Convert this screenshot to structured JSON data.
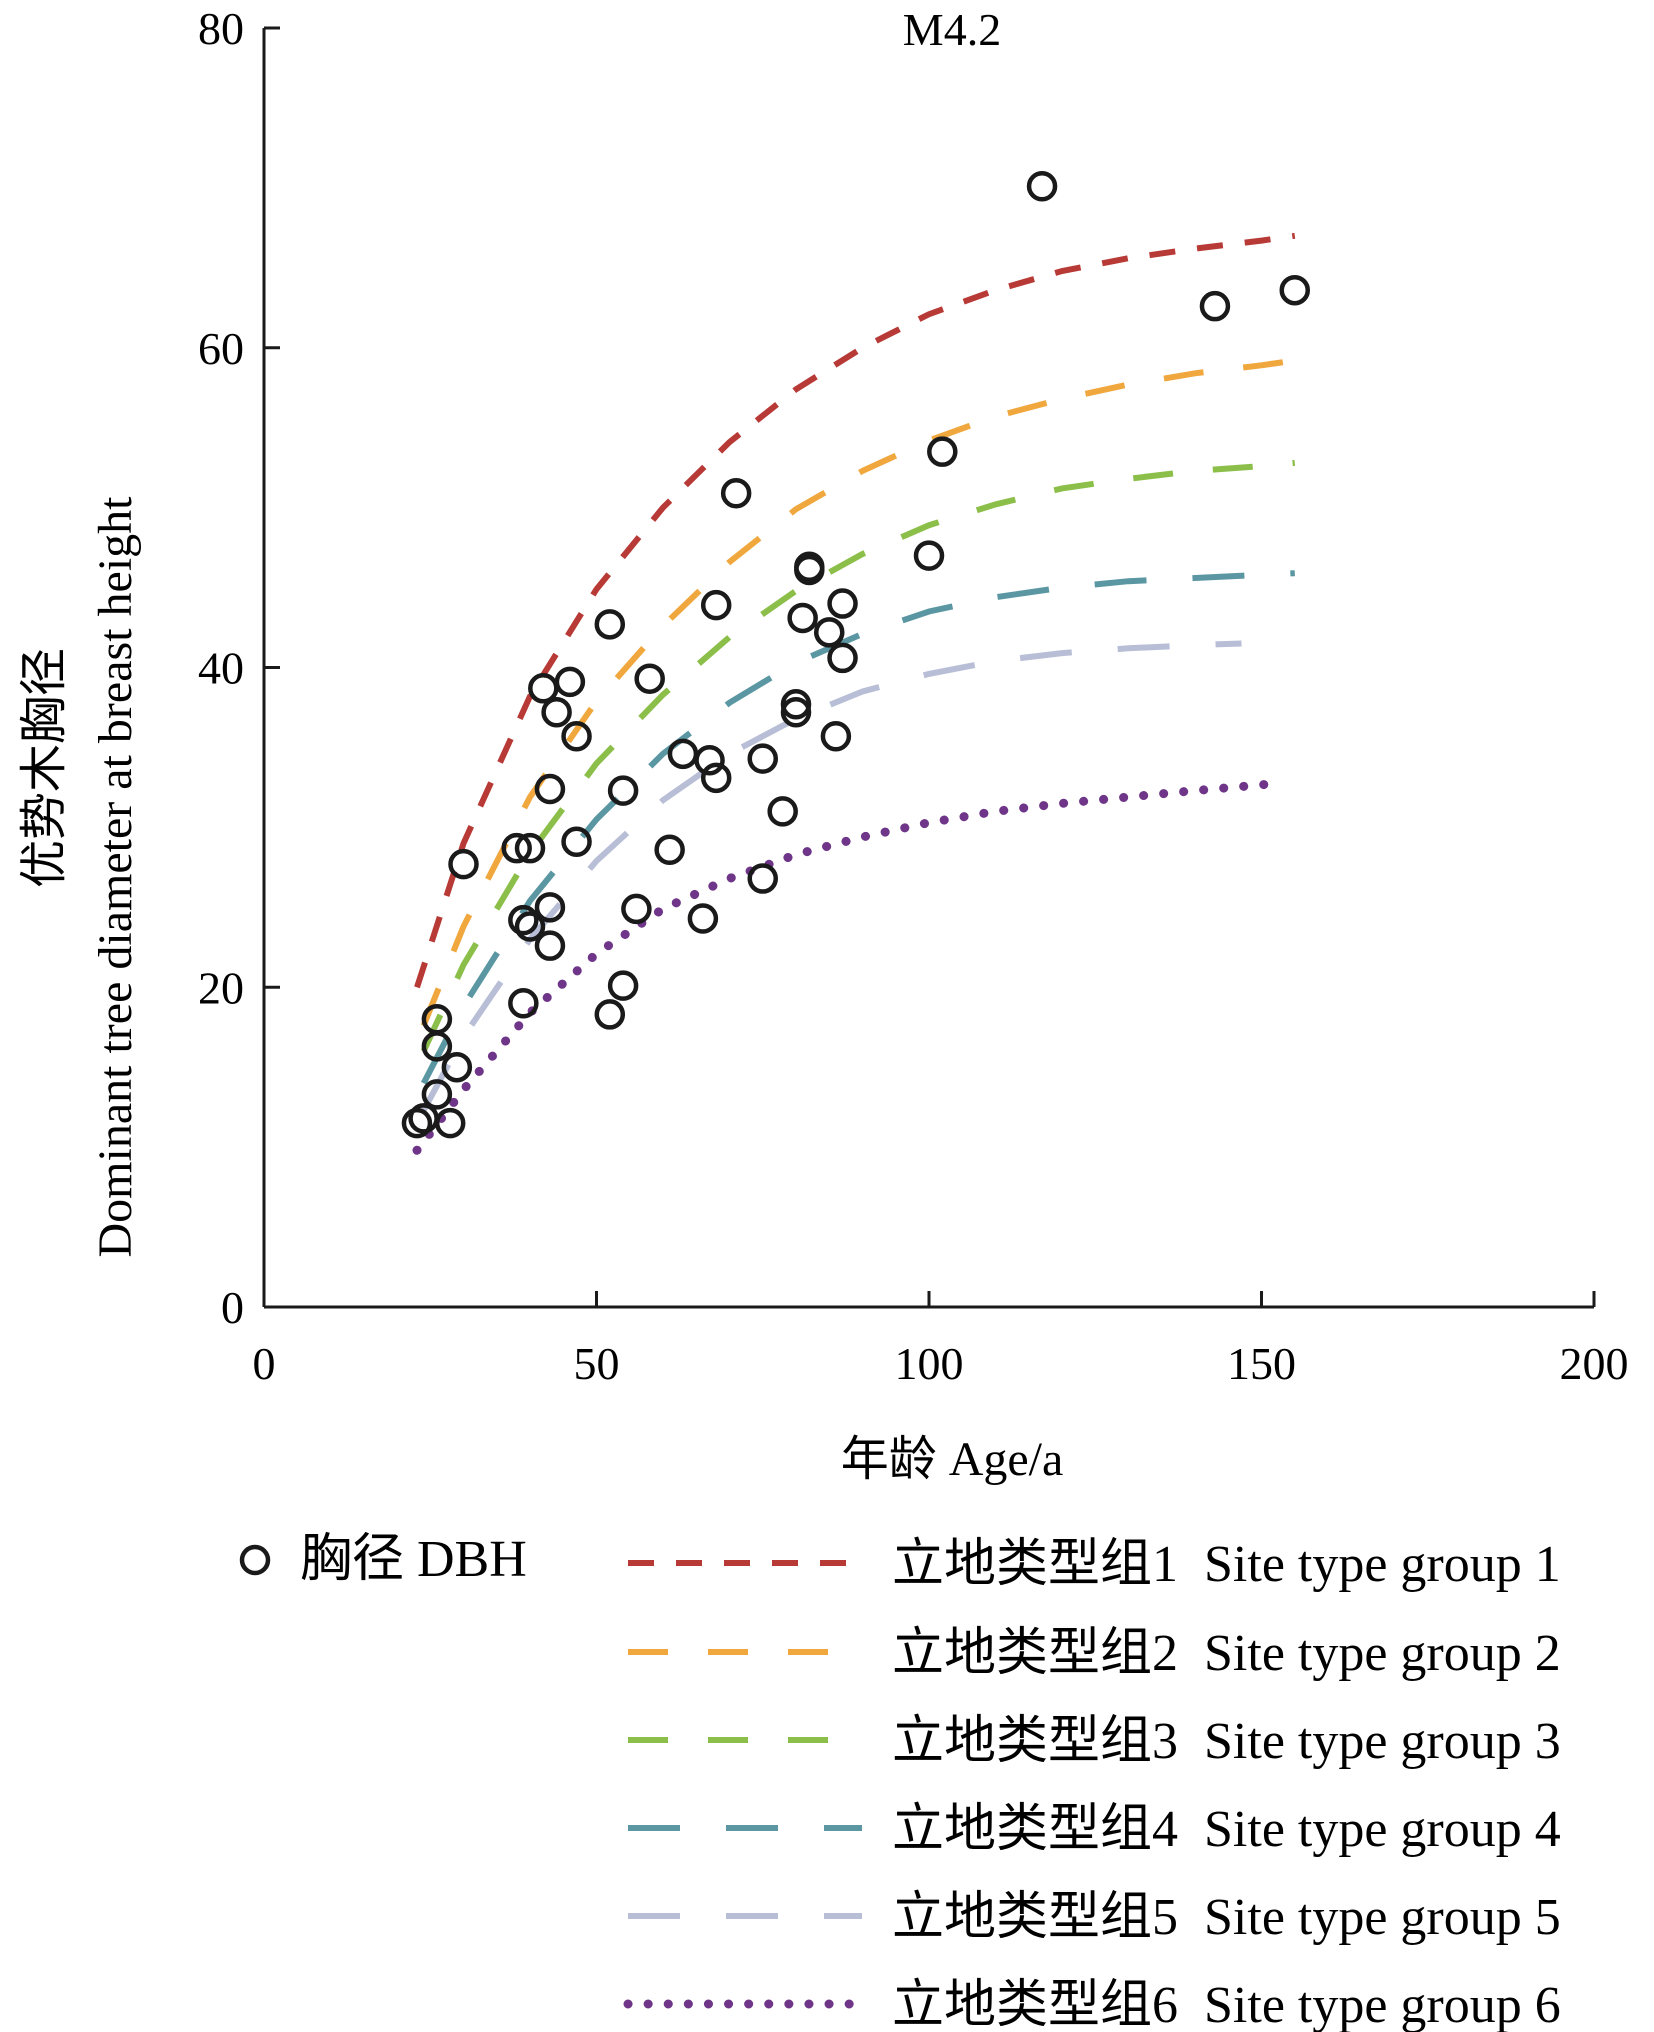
{
  "chart_data": {
    "type": "scatter",
    "title": "M4.2",
    "xlabel": "年龄 Age/a",
    "ylabel": {
      "zh": "优势木胸径",
      "en": "Dominant tree diameter at breast height"
    },
    "xlim": [
      0,
      200
    ],
    "ylim": [
      0,
      80
    ],
    "xticks": [
      0,
      50,
      100,
      150,
      200
    ],
    "yticks": [
      0,
      20,
      40,
      60,
      80
    ],
    "grid": false,
    "legend_position": "bottom",
    "scatter": {
      "name": "胸径 DBH",
      "color": "#1a1a1a",
      "x": [
        23,
        24,
        26,
        26,
        26,
        28,
        29,
        30,
        38,
        39,
        39,
        40,
        40,
        42,
        43,
        43,
        43,
        44,
        46,
        47,
        47,
        52,
        52,
        54,
        54,
        56,
        58,
        61,
        63,
        66,
        67,
        68,
        68,
        71,
        75,
        75,
        78,
        80,
        80,
        81,
        82,
        82,
        85,
        86,
        87,
        87,
        100,
        102,
        117,
        143,
        155
      ],
      "y": [
        11.5,
        11.8,
        16.3,
        18.0,
        13.3,
        11.5,
        15.0,
        27.7,
        28.7,
        24.2,
        19.0,
        28.7,
        23.8,
        38.7,
        32.4,
        25.0,
        22.6,
        37.2,
        39.1,
        35.7,
        29.1,
        42.7,
        18.3,
        32.3,
        20.1,
        24.9,
        39.3,
        28.6,
        34.6,
        24.3,
        34.2,
        33.1,
        43.9,
        50.9,
        34.3,
        26.8,
        31.0,
        37.7,
        37.2,
        43.1,
        46.3,
        46.1,
        42.2,
        35.7,
        44.0,
        40.6,
        47.0,
        53.5,
        70.1,
        62.6,
        63.6
      ]
    },
    "series": [
      {
        "name": "立地类型组1  Site type group 1",
        "color": "#b83a36",
        "dash": "dash",
        "x": [
          23,
          30,
          40,
          50,
          60,
          70,
          80,
          90,
          100,
          110,
          120,
          130,
          140,
          150,
          155
        ],
        "y": [
          20.0,
          29.0,
          38.2,
          44.9,
          50.0,
          54.1,
          57.4,
          60.0,
          62.1,
          63.6,
          64.8,
          65.6,
          66.2,
          66.7,
          67.0
        ]
      },
      {
        "name": "立地类型组2  Site type group 2",
        "color": "#f0a83e",
        "dash": "long-dash",
        "x": [
          24,
          30,
          40,
          50,
          60,
          70,
          80,
          90,
          100,
          110,
          120,
          130,
          140,
          150,
          155
        ],
        "y": [
          17.6,
          23.8,
          31.9,
          37.9,
          42.6,
          46.6,
          49.9,
          52.3,
          54.2,
          55.7,
          56.8,
          57.7,
          58.4,
          58.9,
          59.2
        ]
      },
      {
        "name": "立地类型组3  Site type group 3",
        "color": "#8bbf4a",
        "dash": "long-dash",
        "x": [
          24,
          30,
          40,
          50,
          60,
          70,
          80,
          90,
          100,
          110,
          120,
          130,
          140,
          150,
          155
        ],
        "y": [
          16.0,
          21.4,
          28.4,
          34.0,
          38.3,
          41.9,
          44.8,
          47.1,
          48.9,
          50.2,
          51.2,
          51.8,
          52.3,
          52.6,
          52.8
        ]
      },
      {
        "name": "立地类型组4  Site type group 4",
        "color": "#5b97a3",
        "dash": "longer-dash",
        "x": [
          24,
          30,
          40,
          50,
          60,
          70,
          80,
          90,
          100,
          110,
          120,
          130,
          140,
          150,
          155
        ],
        "y": [
          14.0,
          18.8,
          25.4,
          30.5,
          34.6,
          37.8,
          40.3,
          42.1,
          43.5,
          44.4,
          45.0,
          45.4,
          45.6,
          45.8,
          45.9
        ]
      },
      {
        "name": "立地类型组5  Site type group 5",
        "color": "#b7bed6",
        "dash": "longer-dash",
        "x": [
          24,
          30,
          40,
          50,
          60,
          70,
          80,
          90,
          100,
          110,
          120,
          130,
          140,
          147
        ],
        "y": [
          12.3,
          16.9,
          23.0,
          27.9,
          31.7,
          34.6,
          36.8,
          38.5,
          39.6,
          40.4,
          40.9,
          41.2,
          41.4,
          41.5
        ]
      },
      {
        "name": "立地类型组6  Site type group 6",
        "color": "#6e3588",
        "dash": "dot",
        "x": [
          23,
          30,
          40,
          50,
          60,
          70,
          80,
          90,
          100,
          110,
          120,
          130,
          140,
          151
        ],
        "y": [
          9.8,
          13.6,
          18.4,
          22.1,
          24.9,
          26.8,
          28.3,
          29.4,
          30.3,
          31.0,
          31.5,
          31.9,
          32.3,
          32.7
        ]
      }
    ]
  }
}
